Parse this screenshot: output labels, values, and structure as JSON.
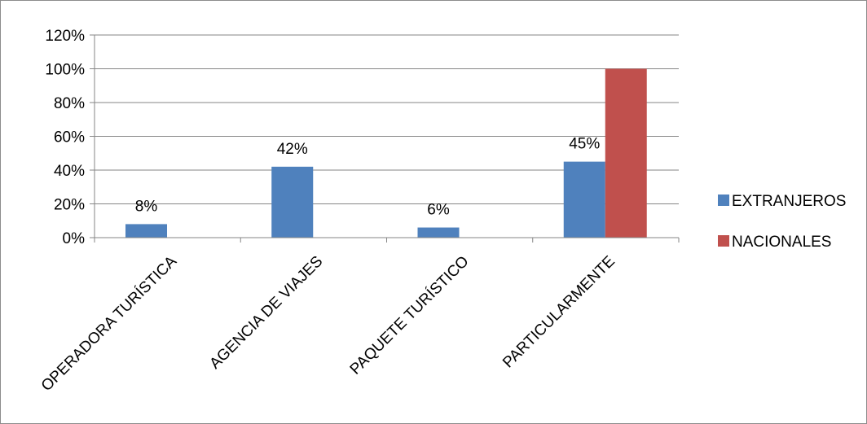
{
  "chart_data": {
    "type": "bar",
    "categories": [
      "OPERADORA TURÍSTICA",
      "AGENCIA DE VIAJES",
      "PAQUETE TURÍSTICO",
      "PARTICULARMENTE"
    ],
    "series": [
      {
        "name": "EXTRANJEROS",
        "values": [
          8,
          42,
          6,
          45
        ],
        "data_labels": [
          "8%",
          "42%",
          "6%",
          "45%"
        ],
        "color": "#4f81bd"
      },
      {
        "name": "NACIONALES",
        "values": [
          null,
          null,
          null,
          100
        ],
        "data_labels": [
          null,
          null,
          null,
          null
        ],
        "color": "#c0504d"
      }
    ],
    "y_ticks": [
      "0%",
      "20%",
      "40%",
      "60%",
      "80%",
      "100%",
      "120%"
    ],
    "ylim": [
      0,
      120
    ],
    "grid": true,
    "gridline_color": "#868686",
    "legend_position": "right",
    "title": "",
    "xlabel": "",
    "ylabel": ""
  }
}
